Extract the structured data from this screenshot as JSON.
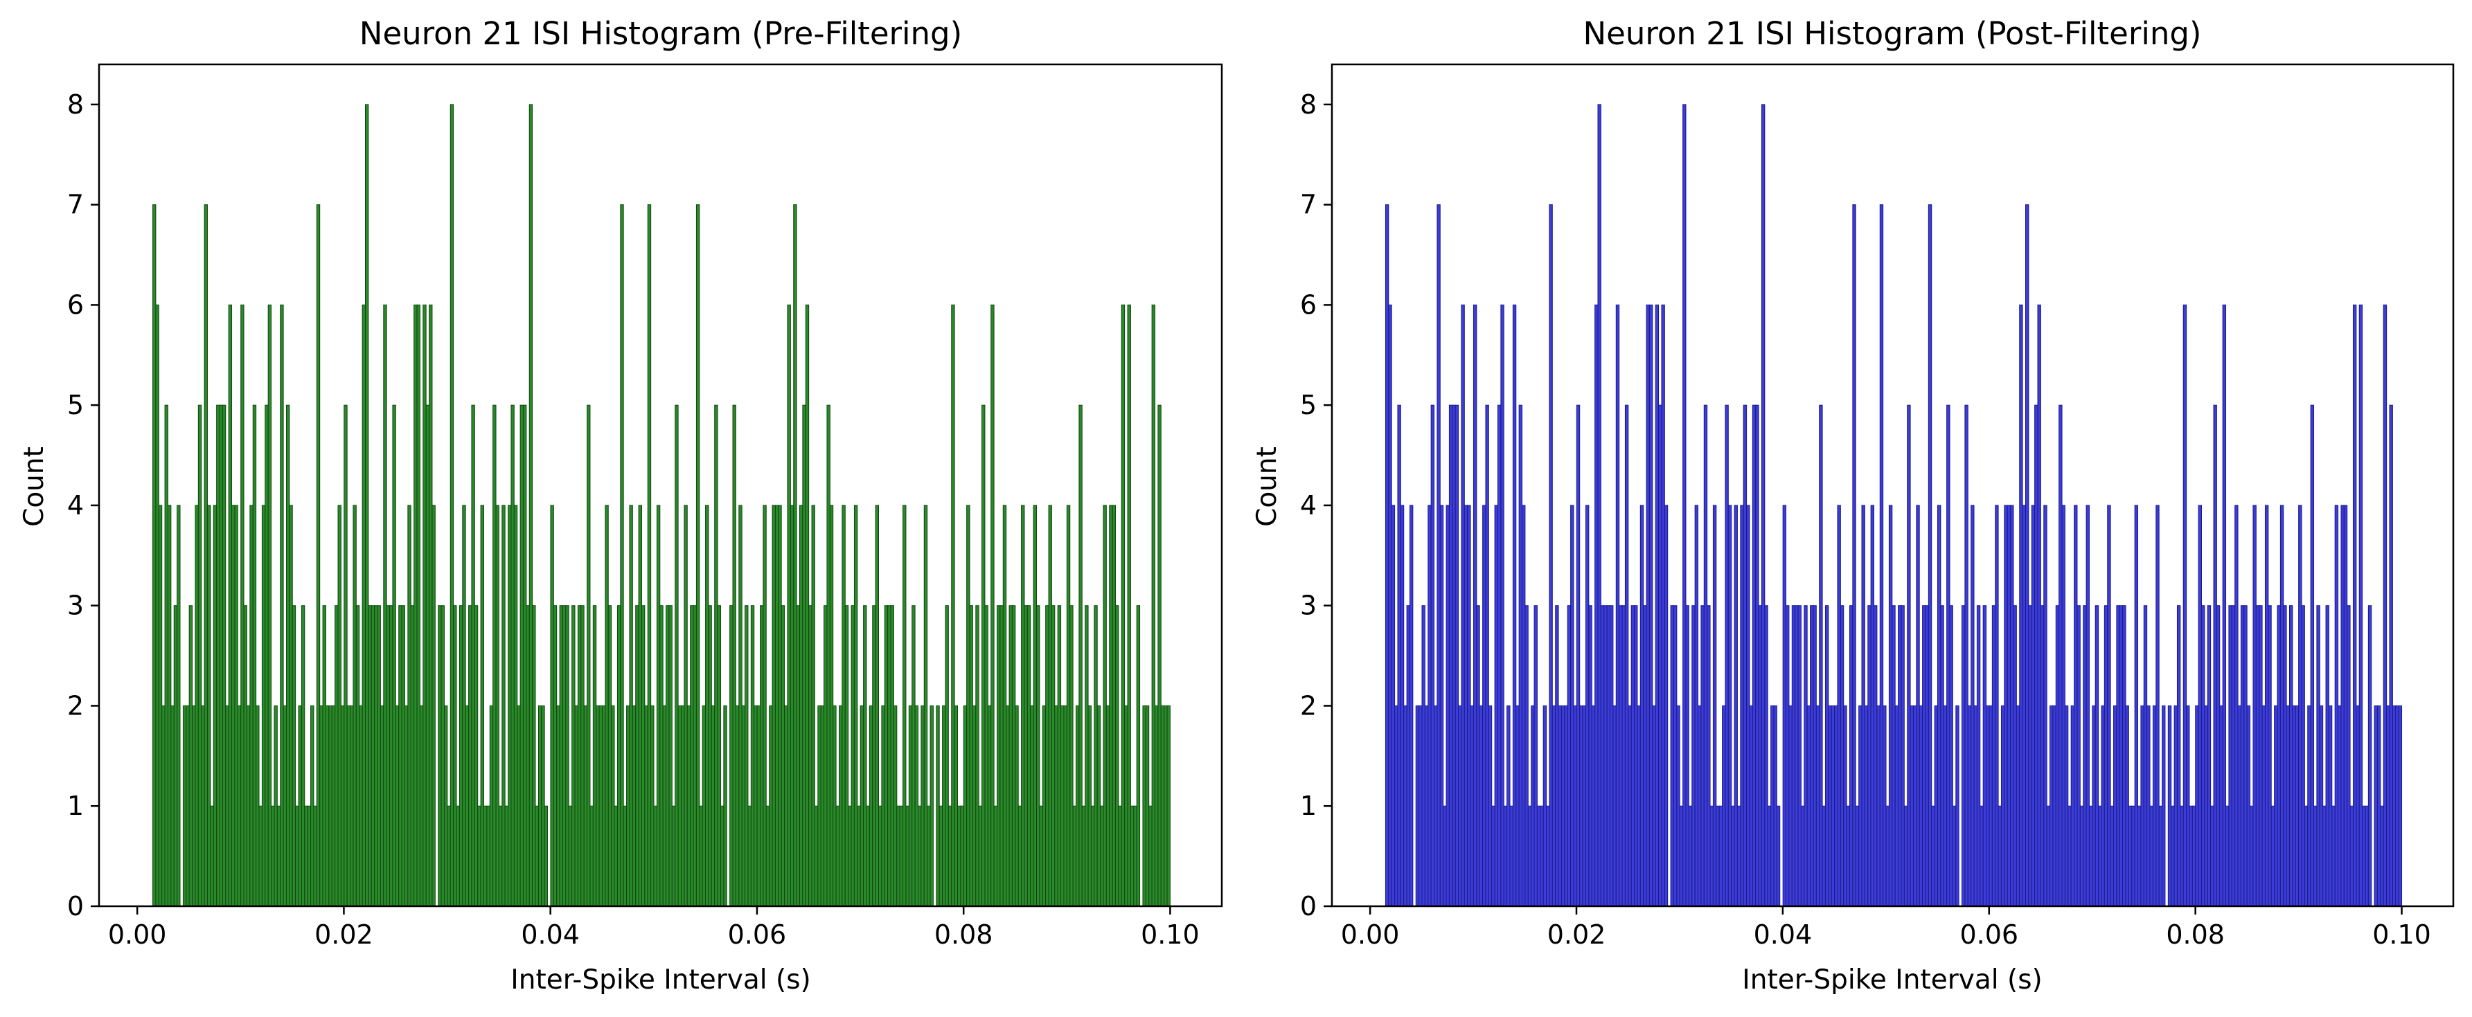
{
  "chart_data": [
    {
      "type": "bar",
      "title": "Neuron 21 ISI Histogram (Pre-Filtering)",
      "xlabel": "Inter-Spike Interval (s)",
      "ylabel": "Count",
      "xlim": [
        -0.0037,
        0.105
      ],
      "ylim": [
        0,
        8.4
      ],
      "xticks": [
        "0.00",
        "0.02",
        "0.04",
        "0.06",
        "0.08",
        "0.10"
      ],
      "yticks": [
        "0",
        "1",
        "2",
        "3",
        "4",
        "5",
        "6",
        "7",
        "8"
      ],
      "bar_color": "#2a8a2a",
      "edge_color": "#114411",
      "bin_range": [
        0.0015,
        0.1
      ],
      "values": [
        7,
        6,
        4,
        2,
        5,
        4,
        2,
        3,
        4,
        0,
        2,
        2,
        3,
        2,
        4,
        5,
        2,
        7,
        4,
        1,
        4,
        5,
        5,
        5,
        2,
        6,
        4,
        4,
        2,
        6,
        3,
        2,
        4,
        5,
        2,
        1,
        4,
        5,
        6,
        1,
        2,
        1,
        6,
        2,
        5,
        4,
        3,
        1,
        2,
        3,
        1,
        1,
        2,
        1,
        7,
        2,
        3,
        2,
        2,
        2,
        3,
        4,
        2,
        5,
        2,
        2,
        4,
        3,
        2,
        6,
        8,
        3,
        3,
        3,
        3,
        2,
        6,
        3,
        3,
        5,
        2,
        3,
        3,
        2,
        4,
        3,
        6,
        6,
        2,
        6,
        5,
        6,
        4,
        0,
        3,
        3,
        2,
        1,
        8,
        3,
        1,
        3,
        4,
        2,
        3,
        5,
        3,
        1,
        4,
        1,
        1,
        2,
        5,
        4,
        1,
        4,
        1,
        4,
        5,
        4,
        2,
        5,
        5,
        3,
        8,
        3,
        1,
        2,
        2,
        1,
        0,
        4,
        3,
        2,
        3,
        3,
        3,
        1,
        3,
        2,
        3,
        3,
        2,
        5,
        1,
        3,
        2,
        2,
        2,
        4,
        3,
        2,
        1,
        3,
        7,
        1,
        2,
        4,
        2,
        3,
        4,
        3,
        2,
        7,
        2,
        1,
        4,
        3,
        2,
        3,
        3,
        1,
        5,
        2,
        2,
        4,
        2,
        3,
        3,
        7,
        1,
        2,
        4,
        3,
        2,
        5,
        3,
        1,
        2,
        0,
        3,
        5,
        2,
        4,
        2,
        3,
        1,
        3,
        2,
        2,
        3,
        4,
        1,
        2,
        4,
        4,
        4,
        3,
        2,
        6,
        4,
        7,
        3,
        4,
        5,
        6,
        3,
        4,
        1,
        2,
        2,
        3,
        5,
        4,
        2,
        1,
        2,
        4,
        3,
        1,
        3,
        4,
        1,
        2,
        3,
        1,
        2,
        3,
        4,
        1,
        2,
        3,
        3,
        3,
        2,
        1,
        1,
        4,
        1,
        2,
        3,
        2,
        1,
        2,
        4,
        1,
        2,
        0,
        2,
        1,
        2,
        3,
        1,
        6,
        2,
        1,
        1,
        2,
        4,
        3,
        2,
        3,
        1,
        5,
        3,
        2,
        6,
        1,
        3,
        3,
        4,
        2,
        3,
        3,
        2,
        1,
        4,
        3,
        3,
        2,
        4,
        3,
        1,
        2,
        3,
        4,
        3,
        2,
        3,
        2,
        2,
        4,
        3,
        1,
        2,
        5,
        1,
        3,
        2,
        1,
        3,
        2,
        1,
        4,
        2,
        4,
        4,
        3,
        1,
        6,
        2,
        6,
        1,
        1,
        3,
        0,
        2,
        2,
        1,
        6,
        2,
        5,
        2,
        2,
        2
      ]
    },
    {
      "type": "bar",
      "title": "Neuron 21 ISI Histogram (Post-Filtering)",
      "xlabel": "Inter-Spike Interval (s)",
      "ylabel": "Count",
      "xlim": [
        -0.0037,
        0.105
      ],
      "ylim": [
        0,
        8.4
      ],
      "xticks": [
        "0.00",
        "0.02",
        "0.04",
        "0.06",
        "0.08",
        "0.10"
      ],
      "yticks": [
        "0",
        "1",
        "2",
        "3",
        "4",
        "5",
        "6",
        "7",
        "8"
      ],
      "bar_color": "#3c3cd6",
      "edge_color": "#1a1a8a",
      "bin_range": [
        0.0015,
        0.1
      ],
      "values": [
        7,
        6,
        4,
        2,
        5,
        4,
        2,
        3,
        4,
        0,
        2,
        2,
        3,
        2,
        4,
        5,
        2,
        7,
        4,
        1,
        4,
        5,
        5,
        5,
        2,
        6,
        4,
        4,
        2,
        6,
        3,
        2,
        4,
        5,
        2,
        1,
        4,
        5,
        6,
        1,
        2,
        1,
        6,
        2,
        5,
        4,
        3,
        1,
        2,
        3,
        1,
        1,
        2,
        1,
        7,
        2,
        3,
        2,
        2,
        2,
        3,
        4,
        2,
        5,
        2,
        2,
        4,
        3,
        2,
        6,
        8,
        3,
        3,
        3,
        3,
        2,
        6,
        3,
        3,
        5,
        2,
        3,
        3,
        2,
        4,
        3,
        6,
        6,
        2,
        6,
        5,
        6,
        4,
        0,
        3,
        3,
        2,
        1,
        8,
        3,
        1,
        3,
        4,
        2,
        3,
        5,
        3,
        1,
        4,
        1,
        1,
        2,
        5,
        4,
        1,
        4,
        1,
        4,
        5,
        4,
        2,
        5,
        5,
        3,
        8,
        3,
        1,
        2,
        2,
        1,
        0,
        4,
        3,
        2,
        3,
        3,
        3,
        1,
        3,
        2,
        3,
        3,
        2,
        5,
        1,
        3,
        2,
        2,
        2,
        4,
        3,
        2,
        1,
        3,
        7,
        1,
        2,
        4,
        2,
        3,
        4,
        3,
        2,
        7,
        2,
        1,
        4,
        3,
        2,
        3,
        3,
        1,
        5,
        2,
        2,
        4,
        2,
        3,
        3,
        7,
        1,
        2,
        4,
        3,
        2,
        5,
        3,
        1,
        2,
        0,
        3,
        5,
        2,
        4,
        2,
        3,
        1,
        3,
        2,
        2,
        3,
        4,
        1,
        2,
        4,
        4,
        4,
        3,
        2,
        6,
        4,
        7,
        3,
        4,
        5,
        6,
        3,
        4,
        1,
        2,
        2,
        3,
        5,
        4,
        2,
        1,
        2,
        4,
        3,
        1,
        3,
        4,
        1,
        2,
        3,
        1,
        2,
        3,
        4,
        1,
        2,
        3,
        3,
        3,
        2,
        1,
        1,
        4,
        1,
        2,
        3,
        2,
        1,
        2,
        4,
        1,
        2,
        0,
        2,
        1,
        2,
        3,
        1,
        6,
        2,
        1,
        1,
        2,
        4,
        3,
        2,
        3,
        1,
        5,
        3,
        2,
        6,
        1,
        3,
        3,
        4,
        2,
        3,
        3,
        2,
        1,
        4,
        3,
        3,
        2,
        4,
        3,
        1,
        2,
        3,
        4,
        3,
        2,
        3,
        2,
        2,
        4,
        3,
        1,
        2,
        5,
        1,
        3,
        2,
        1,
        3,
        2,
        1,
        4,
        2,
        4,
        4,
        3,
        1,
        6,
        2,
        6,
        1,
        1,
        3,
        0,
        2,
        2,
        1,
        6,
        2,
        5,
        2,
        2,
        2
      ]
    }
  ]
}
